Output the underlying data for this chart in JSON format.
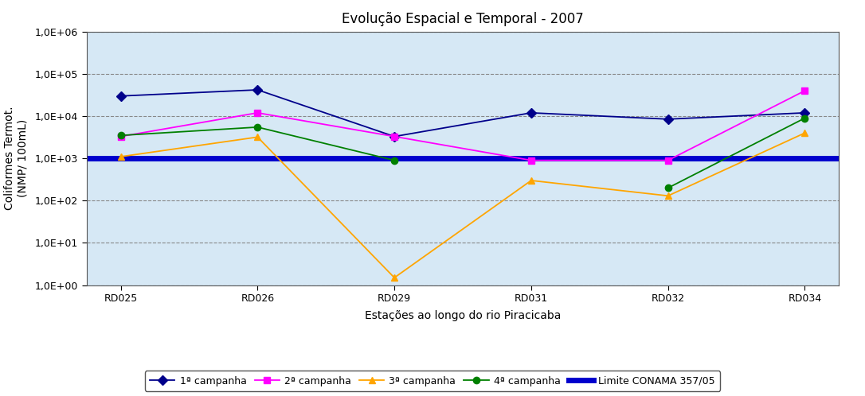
{
  "title": "Evolução Espacial e Temporal - 2007",
  "xlabel": "Estações ao longo do rio Piracicaba",
  "ylabel": "Coliformes Termot.\n(NMP/ 100mL)",
  "stations": [
    "RD025",
    "RD026",
    "RD029",
    "RD031",
    "RD032",
    "RD034"
  ],
  "series": [
    {
      "label": "1ª campanha",
      "color": "#00008B",
      "marker": "D",
      "markersize": 6,
      "linewidth": 1.3,
      "values": [
        30000,
        42000,
        3300,
        12000,
        8500,
        12000
      ]
    },
    {
      "label": "2ª campanha",
      "color": "#FF00FF",
      "marker": "s",
      "markersize": 6,
      "linewidth": 1.3,
      "values": [
        3300,
        12000,
        3300,
        900,
        900,
        40000
      ]
    },
    {
      "label": "3ª campanha",
      "color": "#FFA500",
      "marker": "^",
      "markersize": 6,
      "linewidth": 1.3,
      "values": [
        1100,
        3200,
        1.5,
        300,
        130,
        4000
      ]
    },
    {
      "label": "4ª campanha",
      "color": "#008000",
      "marker": "o",
      "markersize": 6,
      "linewidth": 1.3,
      "values": [
        3500,
        5500,
        900,
        null,
        200,
        9000
      ]
    }
  ],
  "conama_value": 1000,
  "conama_label": "Limite CONAMA 357/05",
  "conama_color": "#0000CD",
  "conama_linewidth": 5,
  "ylim_log": [
    1.0,
    1000000.0
  ],
  "figure_bg_color": "#FFFFFF",
  "plot_bg_color": "#D6E8F5",
  "grid_color": "#888888",
  "title_fontsize": 12,
  "label_fontsize": 10,
  "tick_fontsize": 9,
  "legend_fontsize": 9
}
